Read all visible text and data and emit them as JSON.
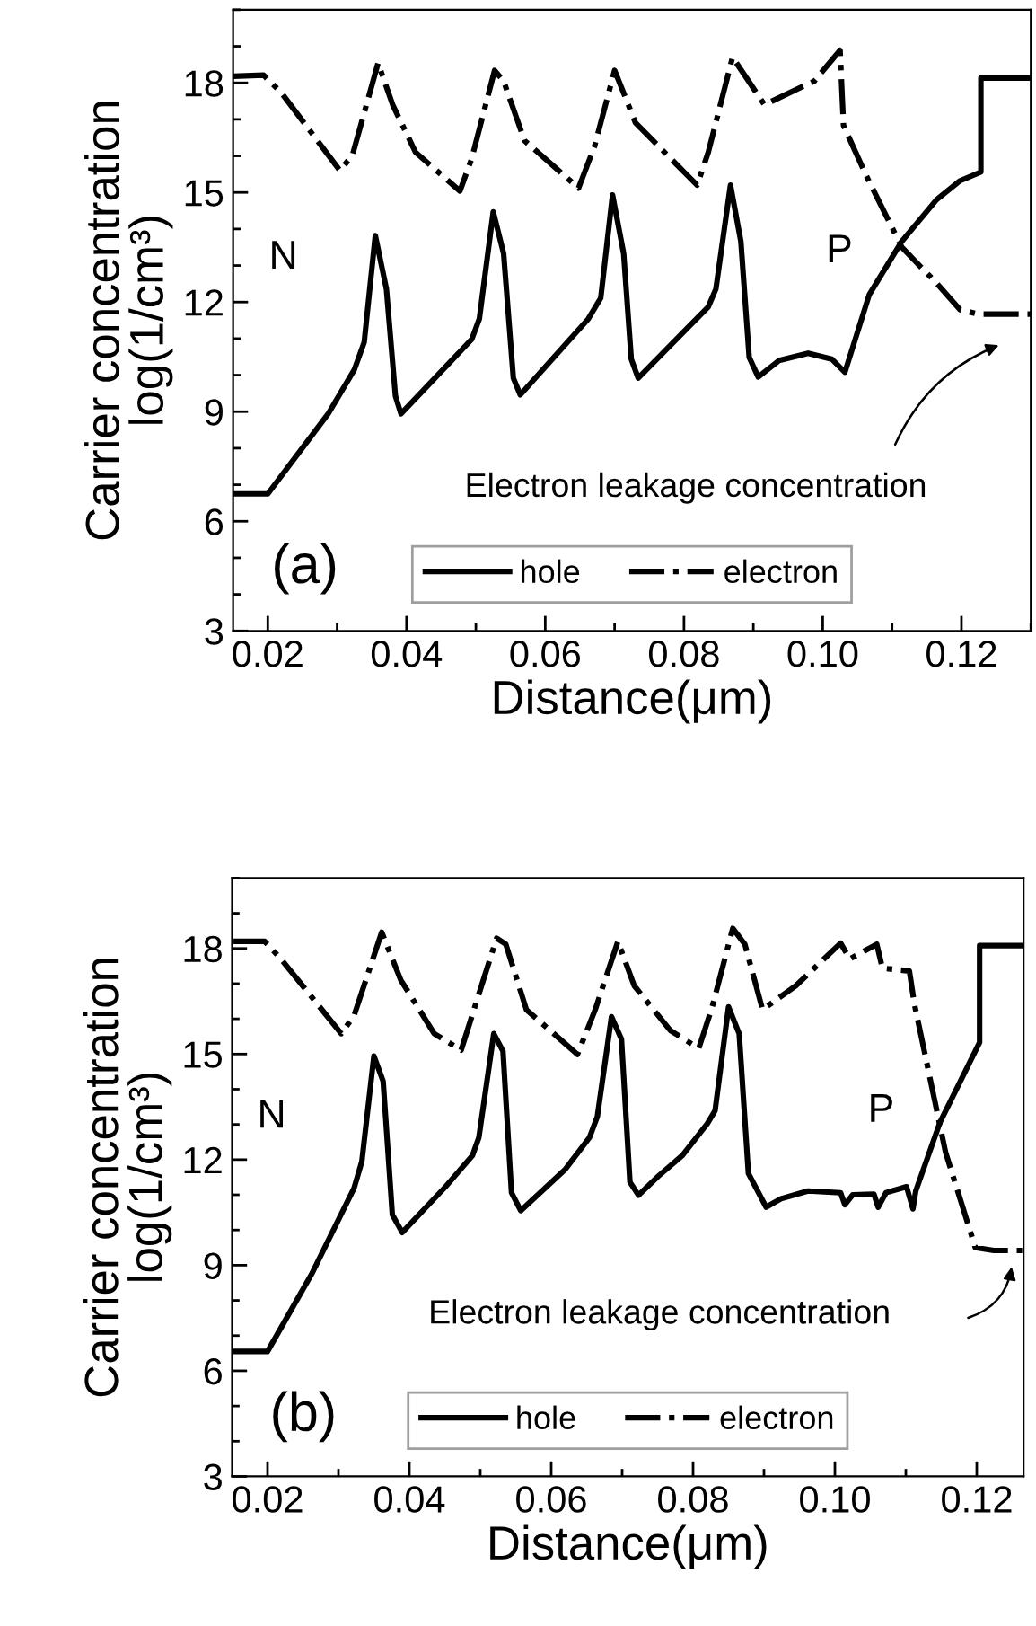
{
  "chart_data": [
    {
      "type": "line",
      "xlabel": "Distance(μm)",
      "ylabel": "Carrier concentration\nlog(1/cm³)",
      "xlim": [
        0.015,
        0.13
      ],
      "ylim": [
        3,
        20
      ],
      "xticks": [
        0.02,
        0.04,
        0.06,
        0.08,
        {
          "value": 0.1,
          "label": "0.10"
        },
        0.12
      ],
      "yticks": [
        3,
        6,
        9,
        12,
        15,
        18
      ],
      "legend": "bottom",
      "grid": false,
      "marker": "none",
      "annotations": [
        "N",
        "P",
        "(a)",
        "Electron leakage concentration"
      ],
      "series": [
        {
          "name": "hole",
          "color": "#000000",
          "line_style": "solid",
          "x": [
            0.015,
            0.02,
            0.0287,
            0.0325,
            0.0339,
            0.0355,
            0.0371,
            0.0384,
            0.0392,
            0.0494,
            0.0505,
            0.0525,
            0.054,
            0.0554,
            0.0564,
            0.0662,
            0.068,
            0.0697,
            0.0713,
            0.0724,
            0.0734,
            0.0835,
            0.0846,
            0.0867,
            0.0882,
            0.0894,
            0.0907,
            0.0937,
            0.0979,
            0.1013,
            0.1032,
            0.1067,
            0.1114,
            0.1164,
            0.1198,
            0.1228,
            0.1228,
            0.13
          ],
          "values": [
            6.75,
            6.75,
            8.94,
            10.16,
            10.9,
            13.82,
            12.36,
            9.43,
            8.94,
            10.98,
            11.54,
            14.47,
            13.33,
            9.92,
            9.46,
            11.54,
            12.11,
            14.93,
            13.33,
            10.44,
            9.92,
            11.87,
            12.36,
            15.2,
            13.66,
            10.49,
            9.95,
            10.4,
            10.6,
            10.44,
            10.08,
            12.2,
            13.66,
            14.8,
            15.32,
            15.56,
            18.13,
            18.13
          ]
        },
        {
          "name": "electron",
          "color": "#000000",
          "line_style": "dashdot",
          "x": [
            0.015,
            0.0194,
            0.022,
            0.0304,
            0.0322,
            0.0359,
            0.038,
            0.0413,
            0.0477,
            0.0494,
            0.0527,
            0.054,
            0.057,
            0.0648,
            0.0671,
            0.07,
            0.073,
            0.0776,
            0.0819,
            0.0835,
            0.087,
            0.0916,
            0.0988,
            0.1025,
            0.103,
            0.1063,
            0.1114,
            0.1164,
            0.1198,
            0.1224,
            0.13
          ],
          "values": [
            18.18,
            18.21,
            17.72,
            15.6,
            16.02,
            18.54,
            17.4,
            16.1,
            15.04,
            15.93,
            18.34,
            18.05,
            16.42,
            15.12,
            16.26,
            18.34,
            16.91,
            16.02,
            15.2,
            16.1,
            18.7,
            17.4,
            18.05,
            18.89,
            16.83,
            15.45,
            13.5,
            12.52,
            11.79,
            11.67,
            11.67
          ]
        }
      ]
    },
    {
      "type": "line",
      "xlabel": "Distance(μm)",
      "ylabel": "Carrier concentration\nlog(1/cm³)",
      "xlim": [
        0.015,
        0.1266
      ],
      "ylim": [
        3,
        20
      ],
      "xticks": [
        0.02,
        0.04,
        0.06,
        0.08,
        {
          "value": 0.1,
          "label": "0.10"
        },
        0.12
      ],
      "yticks": [
        3,
        6,
        9,
        12,
        15,
        18
      ],
      "legend": "bottom",
      "grid": false,
      "marker": "none",
      "annotations": [
        "N",
        "P",
        "(b)",
        "Electron leakage concentration"
      ],
      "series": [
        {
          "name": "hole",
          "color": "#000000",
          "line_style": "solid",
          "x": [
            0.0152,
            0.02,
            0.0262,
            0.0322,
            0.0333,
            0.035,
            0.0363,
            0.0376,
            0.039,
            0.0451,
            0.0489,
            0.0498,
            0.0519,
            0.0532,
            0.0544,
            0.0557,
            0.062,
            0.0654,
            0.0665,
            0.0685,
            0.0699,
            0.0711,
            0.0723,
            0.0751,
            0.0785,
            0.082,
            0.0831,
            0.085,
            0.0865,
            0.0878,
            0.0903,
            0.0924,
            0.0962,
            0.1008,
            0.1014,
            0.1025,
            0.1055,
            0.1061,
            0.1072,
            0.1101,
            0.111,
            0.1114,
            0.1148,
            0.1204,
            0.1204,
            0.1266
          ],
          "values": [
            6.55,
            6.55,
            8.74,
            11.19,
            11.95,
            14.94,
            14.23,
            10.43,
            9.93,
            11.23,
            12.12,
            12.63,
            15.58,
            15.08,
            11.06,
            10.55,
            11.73,
            12.63,
            13.22,
            16.06,
            15.42,
            11.36,
            10.99,
            11.53,
            12.12,
            13.02,
            13.39,
            16.34,
            15.58,
            11.61,
            10.65,
            10.89,
            11.11,
            11.06,
            10.72,
            11.0,
            11.02,
            10.65,
            11.06,
            11.23,
            10.6,
            11.11,
            13.05,
            15.33,
            18.08,
            18.08
          ]
        },
        {
          "name": "electron",
          "color": "#000000",
          "line_style": "dashdot",
          "x": [
            0.0152,
            0.0196,
            0.0219,
            0.0304,
            0.0322,
            0.0361,
            0.0388,
            0.0435,
            0.0473,
            0.0491,
            0.0523,
            0.0536,
            0.0565,
            0.0637,
            0.0662,
            0.0694,
            0.0717,
            0.0768,
            0.0808,
            0.0827,
            0.0856,
            0.0873,
            0.0898,
            0.0945,
            0.1008,
            0.1021,
            0.1059,
            0.1067,
            0.1105,
            0.1112,
            0.1156,
            0.1198,
            0.1224,
            0.1266
          ],
          "values": [
            18.2,
            18.2,
            17.7,
            15.58,
            16.09,
            18.46,
            17.1,
            15.58,
            15.11,
            16.26,
            18.29,
            18.12,
            16.26,
            14.99,
            16.26,
            18.2,
            16.94,
            15.67,
            15.16,
            16.34,
            18.57,
            18.12,
            16.26,
            16.94,
            18.15,
            17.7,
            18.12,
            17.44,
            17.36,
            16.43,
            12.21,
            9.5,
            9.42,
            9.42
          ]
        }
      ]
    }
  ]
}
